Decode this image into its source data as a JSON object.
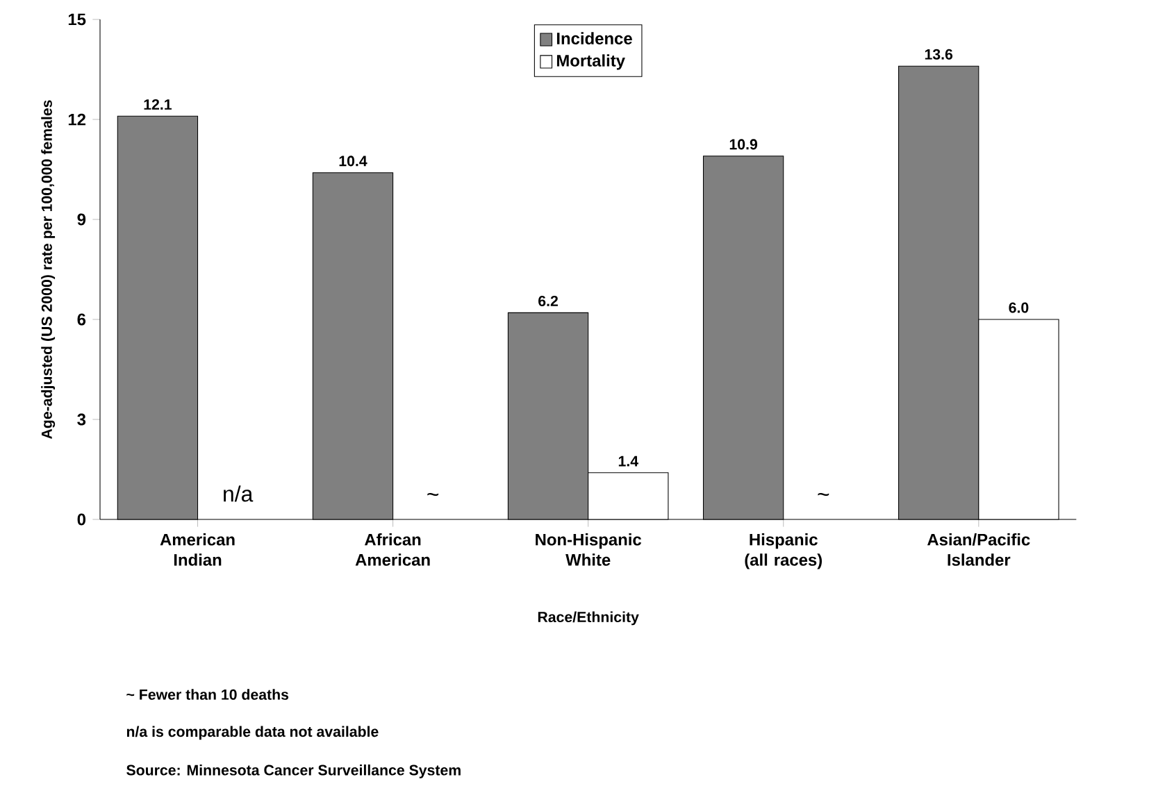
{
  "chart_data": {
    "type": "bar",
    "xlabel": "Race/Ethnicity",
    "ylabel": "Age-adjusted (US 2000) rate per 100,000 females",
    "categories": [
      "American Indian",
      "African American",
      "Non-Hispanic White",
      "Hispanic (all races)",
      "Asian/Pacific Islander"
    ],
    "series": [
      {
        "name": "Incidence",
        "color": "#808080",
        "values": [
          12.1,
          10.4,
          6.2,
          10.9,
          13.6
        ],
        "value_labels": [
          "12.1",
          "10.4",
          "6.2",
          "10.9",
          "13.6"
        ]
      },
      {
        "name": "Mortality",
        "color": "#ffffff",
        "values": [
          null,
          null,
          1.4,
          null,
          6.0
        ],
        "value_labels": [
          "n/a",
          "~",
          "1.4",
          "~",
          "6.0"
        ]
      }
    ],
    "ylim": [
      0,
      15
    ],
    "yticks": [
      0,
      3,
      6,
      9,
      12,
      15
    ],
    "legend": "top",
    "annotations": [
      "~ Fewer than 10 deaths",
      "n/a is comparable data not available",
      "Source: Minnesota Cancer Surveillance System"
    ]
  }
}
